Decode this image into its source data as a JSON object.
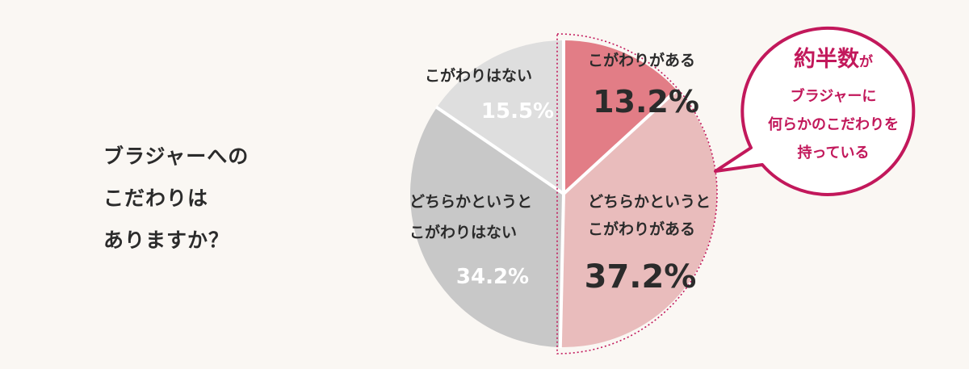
{
  "question": {
    "lines": [
      "ブラジャーへの",
      "こだわりは",
      "ありますか？"
    ]
  },
  "callout": {
    "emphasis": "約半数",
    "emphasis_suffix": "が",
    "lines": [
      "ブラジャーに",
      "何らかのこだわりを",
      "持っている"
    ]
  },
  "colors": {
    "background": "#faf7f3",
    "accent": "#c2185b",
    "slice_has": "#e27d86",
    "slice_somewhat_has": "#e9bcbc",
    "slice_somewhat_none": "#c8c8c8",
    "slice_none": "#dedede",
    "dark_text": "#2b2b2b",
    "light_text": "#ffffff"
  },
  "chart_data": {
    "type": "pie",
    "start_angle_deg": 0,
    "direction": "clockwise",
    "slices": [
      {
        "label_lines": [
          "こがわりがある"
        ],
        "value": 13.2,
        "value_label": "13.2%",
        "color": "#e27d86",
        "text_color": "#2b2b2b"
      },
      {
        "label_lines": [
          "どちらかというと",
          "こがわりがある"
        ],
        "value": 37.2,
        "value_label": "37.2%",
        "color": "#e9bcbc",
        "text_color": "#2b2b2b"
      },
      {
        "label_lines": [
          "どちらかというと",
          "こがわりはない"
        ],
        "value": 34.2,
        "value_label": "34.2%",
        "color": "#c8c8c8",
        "text_color": "#2b2b2b",
        "value_color": "#ffffff"
      },
      {
        "label_lines": [
          "こがわりはない"
        ],
        "value": 15.5,
        "value_label": "15.5%",
        "color": "#dedede",
        "text_color": "#2b2b2b",
        "value_color": "#ffffff"
      }
    ],
    "highlight_group": [
      "こがわりがある",
      "どちらかというと こがわりがある"
    ]
  }
}
